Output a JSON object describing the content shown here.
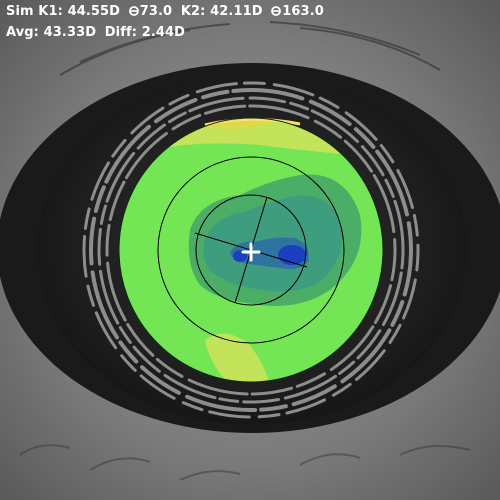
{
  "readout": {
    "k1_label": "Sim K1:",
    "k1_value": "44.55D",
    "k1_axis": "73.0",
    "k2_label": "K2:",
    "k2_value": "42.11D",
    "k2_axis": "163.0",
    "avg_label": "Avg:",
    "avg_value": "43.33D",
    "diff_label": "Diff:",
    "diff_value": "2.44D"
  },
  "icons": {
    "axis_symbol": "degree-axis-icon",
    "center_marker": "crosshair-icon"
  },
  "map": {
    "colors": {
      "base": "#74e655",
      "mid": "#4cae66",
      "steep": "#3f9d7f",
      "deep": "#2f74a0",
      "center": "#1b3fbf",
      "flat": "#c2e35a",
      "flattest": "#dcd94c",
      "rim": "#ffe066"
    }
  }
}
